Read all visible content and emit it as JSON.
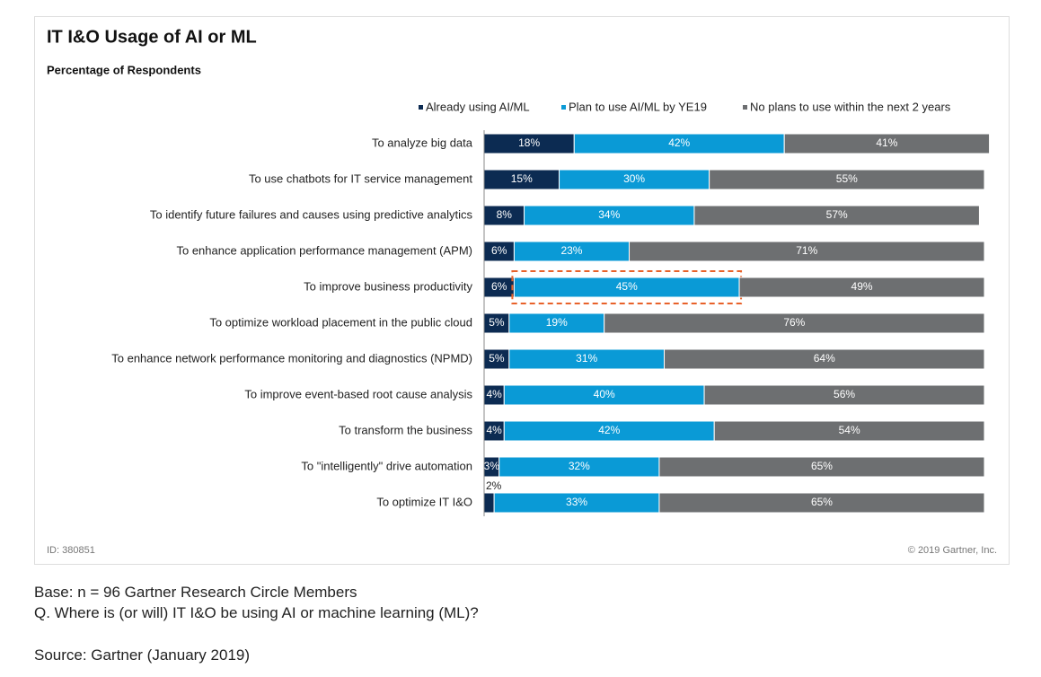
{
  "chart_data": {
    "type": "stacked-bar-horizontal",
    "title": "IT I&O Usage of AI or ML",
    "subtitle": "Percentage of Respondents",
    "categories": [
      "To analyze big data",
      "To use chatbots for IT service management",
      "To identify future failures and causes using predictive analytics",
      "To enhance application performance management (APM)",
      "To improve business productivity",
      "To optimize workload placement in the public cloud",
      "To enhance network performance monitoring and diagnostics (NPMD)",
      "To improve event-based root cause analysis",
      "To transform the business",
      "To \"intelligently\" drive automation",
      "To optimize IT I&O"
    ],
    "series": [
      {
        "name": "Already using AI/ML",
        "color": "#0c2b52",
        "values": [
          18,
          15,
          8,
          6,
          6,
          5,
          5,
          4,
          4,
          3,
          2
        ],
        "value_labels": [
          "18%",
          "15%",
          "8%",
          "6%",
          "6%",
          "5%",
          "5%",
          "4%",
          "4%",
          "3%",
          "2%"
        ]
      },
      {
        "name": "Plan to use AI/ML by YE19",
        "color": "#0a9ad6",
        "values": [
          42,
          30,
          34,
          23,
          45,
          19,
          31,
          40,
          42,
          32,
          33
        ],
        "value_labels": [
          "42%",
          "30%",
          "34%",
          "23%",
          "45%",
          "19%",
          "31%",
          "40%",
          "42%",
          "32%",
          "33%"
        ]
      },
      {
        "name": "No plans to use within the next 2 years",
        "color": "#6d6f71",
        "values": [
          41,
          55,
          57,
          71,
          49,
          76,
          64,
          56,
          54,
          65,
          65
        ],
        "value_labels": [
          "41%",
          "55%",
          "57%",
          "71%",
          "49%",
          "76%",
          "64%",
          "56%",
          "54%",
          "65%",
          "65%"
        ]
      }
    ],
    "xlim": [
      0,
      100
    ],
    "source_id": "ID: 380851",
    "copyright": "© 2019 Gartner, Inc."
  },
  "notes": [
    "Base: n = 96 Gartner Research Circle Members",
    "Q. Where is (or will) IT I&O be using AI or machine learning (ML)?",
    "Source: Gartner (January 2019)"
  ]
}
